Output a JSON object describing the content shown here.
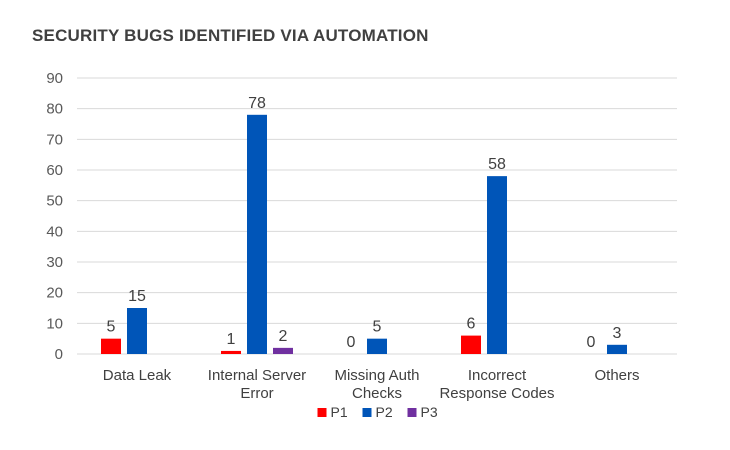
{
  "chart_data": {
    "type": "bar",
    "title": "SECURITY BUGS IDENTIFIED VIA AUTOMATION",
    "xlabel": "",
    "ylabel": "",
    "categories": [
      [
        "Data Leak"
      ],
      [
        "Internal Server",
        "Error"
      ],
      [
        "Missing Auth",
        "Checks"
      ],
      [
        "Incorrect",
        "Response Codes"
      ],
      [
        "Others"
      ]
    ],
    "series": [
      {
        "name": "P1",
        "color": "#ff0000",
        "values": [
          5,
          1,
          0,
          6,
          0
        ]
      },
      {
        "name": "P2",
        "color": "#0055b8",
        "values": [
          15,
          78,
          5,
          58,
          3
        ]
      },
      {
        "name": "P3",
        "color": "#7030a0",
        "values": [
          null,
          2,
          null,
          null,
          null
        ]
      }
    ],
    "ylim": [
      0,
      90
    ],
    "yticks": [
      0,
      10,
      20,
      30,
      40,
      50,
      60,
      70,
      80,
      90
    ],
    "grid": true,
    "legend_position": "bottom"
  }
}
